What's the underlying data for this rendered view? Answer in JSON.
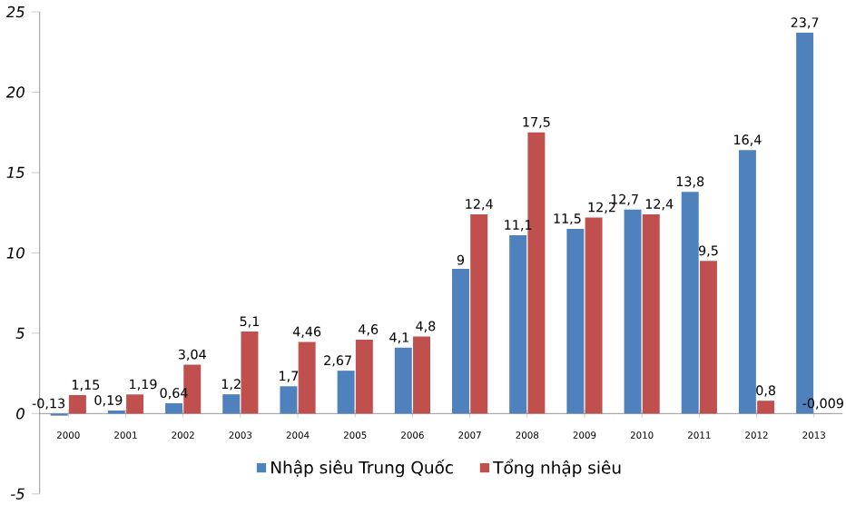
{
  "chart_data": {
    "type": "bar",
    "categories": [
      "2000",
      "2001",
      "2002",
      "2003",
      "2004",
      "2005",
      "2006",
      "2007",
      "2008",
      "2009",
      "2010",
      "2011",
      "2012",
      "2013"
    ],
    "series": [
      {
        "name": "Nhập siêu Trung Quốc",
        "color": "#4f81bd",
        "values": [
          -0.13,
          0.19,
          0.64,
          1.2,
          1.7,
          2.67,
          4.1,
          9,
          11.1,
          11.5,
          12.7,
          13.8,
          16.4,
          23.7
        ],
        "value_labels": [
          "-0,13",
          "0,19",
          "0,64",
          "1,2",
          "1,7",
          "2,67",
          "4,1",
          "9",
          "11,1",
          "11,5",
          "12,7",
          "13,8",
          "16,4",
          "23,7"
        ]
      },
      {
        "name": "Tổng nhập siêu",
        "color": "#c0504d",
        "values": [
          1.15,
          1.19,
          3.04,
          5.1,
          4.46,
          4.6,
          4.8,
          12.4,
          17.5,
          12.2,
          12.4,
          9.5,
          0.8,
          -0.009
        ],
        "value_labels": [
          "1,15",
          "1,19",
          "3,04",
          "5,1",
          "4,46",
          "4,6",
          "4,8",
          "12,4",
          "17,5",
          "12,2",
          "12,4",
          "9,5",
          "0,8",
          "-0,009"
        ]
      }
    ],
    "ylim": [
      -5,
      25
    ],
    "yticks": [
      -5,
      0,
      5,
      10,
      15,
      20,
      25
    ],
    "grid": false,
    "legend": "bottom"
  }
}
